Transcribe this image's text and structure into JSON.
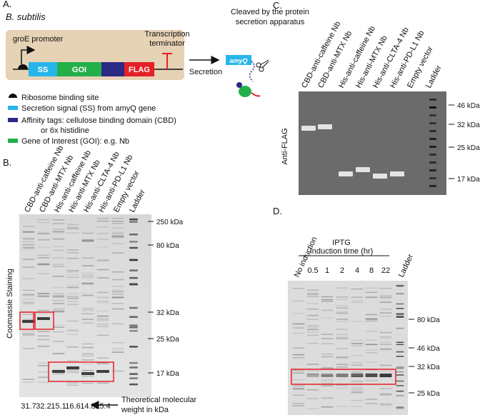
{
  "panel_a": {
    "label": "A.",
    "organism": "B. subtilis",
    "promoter": "groE promoter",
    "terminator": [
      "Transcription",
      "terminator"
    ],
    "segments": [
      "SS",
      "GOI",
      "FLAG"
    ],
    "secretion": "Secretion",
    "cleaved": [
      "Cleaved by the protein",
      "secretion apparatus"
    ],
    "tag": "amyQ",
    "legend": [
      [
        "Ribosome binding site"
      ],
      [
        "Secretion signal (SS) from amyQ gene"
      ],
      [
        "Affinity tags: cellulose binding domain (CBD)",
        "or 6x histidine"
      ],
      [
        "Gene of Interest (GOI): e.g. Nb"
      ]
    ]
  },
  "panel_b": {
    "label": "B.",
    "lanes": [
      "CBD-anti-caffeine Nb",
      "CBD-anti-MTX Nb",
      "His-anti-caffeine Nb",
      "His-anti-MTX Nb",
      "His-anti-CLTA-4 Nb",
      "His-anti-PD-L1 Nb",
      "Empty vector",
      "Ladder"
    ],
    "y_label": "Coomassie Staining",
    "markers": [
      "250 kDa",
      "80 kDa",
      "32 kDa",
      "25 kDa",
      "17 kDa"
    ],
    "weights": [
      "31.7",
      "32.2",
      "15.1",
      "16.6",
      "14.8",
      "15.4"
    ],
    "caption": [
      "Theoretical molecular",
      "weight in kDa"
    ]
  },
  "panel_c": {
    "label": "C.",
    "lanes": [
      "CBD-anti-caffeine Nb",
      "CBD-anti-MTX Nb",
      "His-anti-caffeine Nb",
      "His-anti-MTX Nb",
      "His-anti-CLTA-4 Nb",
      "His-anti-PD-L1 Nb",
      "Empty vector",
      "Ladder"
    ],
    "y_label": "Anti-FLAG",
    "markers": [
      "46 kDa",
      "32 kDa",
      "25 kDa",
      "17 kDa"
    ]
  },
  "panel_d": {
    "label": "D.",
    "control": "No induction",
    "group": "IPTG",
    "group_sub": "Induction time (hr)",
    "times": [
      "0.5",
      "1",
      "2",
      "4",
      "8",
      "22"
    ],
    "ladder": "Ladder",
    "markers": [
      "80 kDa",
      "46 kDa",
      "32 kDa",
      "25 kDa"
    ]
  }
}
